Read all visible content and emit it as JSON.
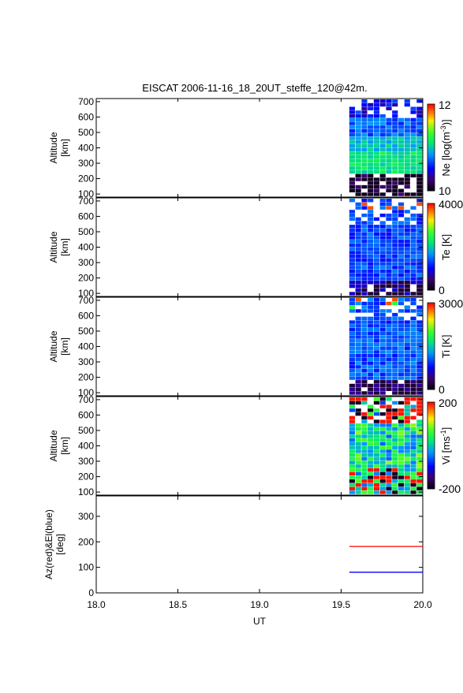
{
  "title": "EISCAT 2006-11-16_18_20UT_steffe_120@42m.",
  "chart_data": [
    {
      "type": "heatmap",
      "ylabel_lines": [
        "Altitude",
        "[km]"
      ],
      "yticks": [
        100,
        200,
        300,
        400,
        500,
        600,
        700
      ],
      "ylim": [
        80,
        720
      ],
      "xlim": [
        18.0,
        20.0
      ],
      "data_x_range": [
        19.55,
        20.0
      ],
      "colorbar": {
        "min_label": "10",
        "max_label": "12",
        "label_parts": [
          "Ne [log(m",
          "-3",
          ")]"
        ]
      },
      "palette_profile": "ne"
    },
    {
      "type": "heatmap",
      "ylabel_lines": [
        "Altitude",
        "[km]"
      ],
      "yticks": [
        100,
        200,
        300,
        400,
        500,
        600,
        700
      ],
      "ylim": [
        80,
        720
      ],
      "xlim": [
        18.0,
        20.0
      ],
      "data_x_range": [
        19.55,
        20.0
      ],
      "colorbar": {
        "min_label": "0",
        "max_label": "4000",
        "label_parts": [
          "Te [K]"
        ]
      },
      "palette_profile": "te"
    },
    {
      "type": "heatmap",
      "ylabel_lines": [
        "Altitude",
        "[km]"
      ],
      "yticks": [
        100,
        200,
        300,
        400,
        500,
        600,
        700
      ],
      "ylim": [
        80,
        720
      ],
      "xlim": [
        18.0,
        20.0
      ],
      "data_x_range": [
        19.55,
        20.0
      ],
      "colorbar": {
        "min_label": "0",
        "max_label": "3000",
        "label_parts": [
          "Ti [K]"
        ]
      },
      "palette_profile": "ti"
    },
    {
      "type": "heatmap",
      "ylabel_lines": [
        "Altitude",
        "[km]"
      ],
      "yticks": [
        100,
        200,
        300,
        400,
        500,
        600,
        700
      ],
      "ylim": [
        80,
        720
      ],
      "xlim": [
        18.0,
        20.0
      ],
      "data_x_range": [
        19.55,
        20.0
      ],
      "colorbar": {
        "min_label": "-200",
        "max_label": "200",
        "label_parts": [
          "Vi [ms",
          "-1",
          "]"
        ]
      },
      "palette_profile": "vi"
    },
    {
      "type": "line",
      "ylabel_lines": [
        "Az(red)&El(blue)",
        "[deg]"
      ],
      "yticks": [
        0,
        100,
        200,
        300
      ],
      "ylim": [
        0,
        380
      ],
      "xlim": [
        18.0,
        20.0
      ],
      "xticks": [
        "18.0",
        "18.5",
        "19.0",
        "19.5",
        "20.0"
      ],
      "xlabel": "UT",
      "series": [
        {
          "name": "Az",
          "color": "#ff0000",
          "x": [
            19.55,
            20.0
          ],
          "y": [
            182,
            182
          ]
        },
        {
          "name": "El",
          "color": "#0000ff",
          "x": [
            19.55,
            20.0
          ],
          "y": [
            81,
            81
          ]
        }
      ]
    }
  ]
}
